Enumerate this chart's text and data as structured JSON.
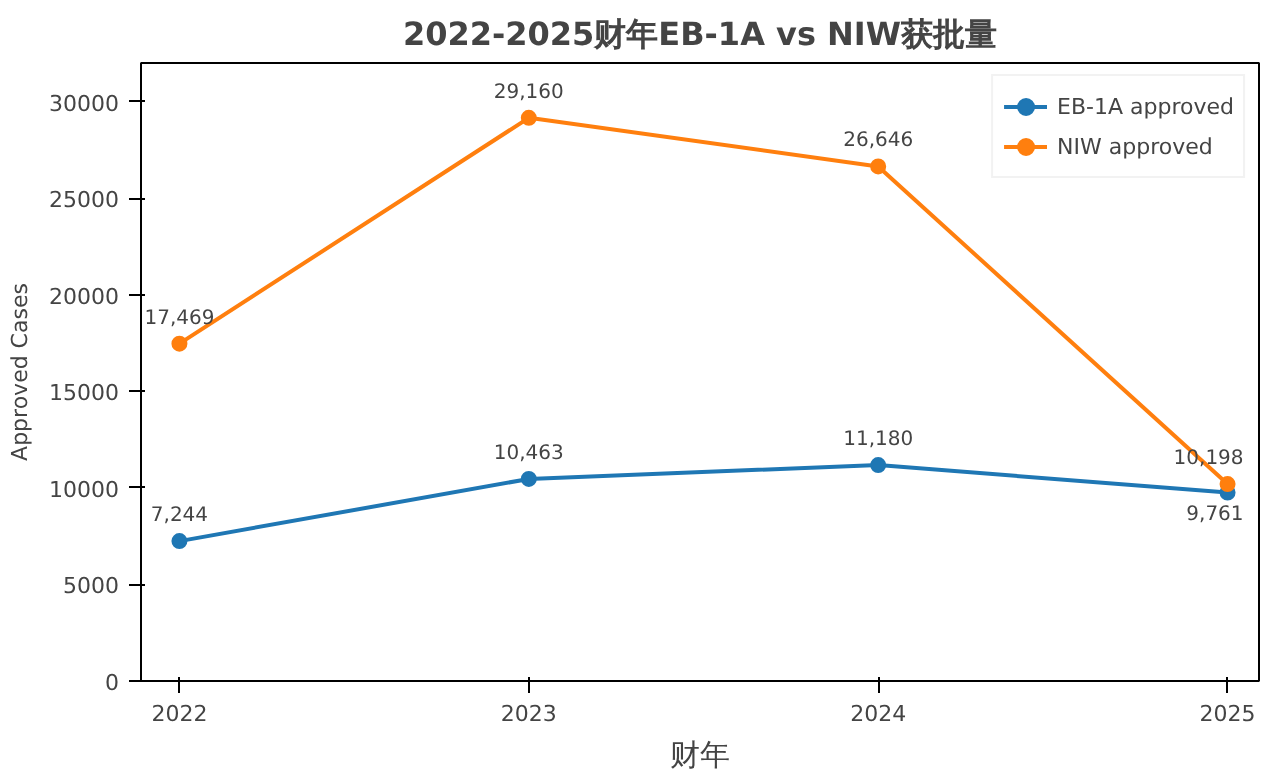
{
  "chart_data": {
    "type": "line",
    "title": "2022-2025财年EB-1A vs NIW获批量",
    "xlabel": "财年",
    "ylabel": "Approved Cases",
    "x": [
      2022,
      2023,
      2024,
      2025
    ],
    "series": [
      {
        "name": "EB-1A approved",
        "color": "#1f77b4",
        "values": [
          7244,
          10463,
          11180,
          9761
        ],
        "value_labels": [
          "7,244",
          "10,463",
          "11,180",
          "9,761"
        ]
      },
      {
        "name": "NIW approved",
        "color": "#ff7f0e",
        "values": [
          17469,
          29160,
          26646,
          10198
        ],
        "value_labels": [
          "17,469",
          "29,160",
          "26,646",
          "10,198"
        ]
      }
    ],
    "xlim": [
      2021.89,
      2025.09
    ],
    "xticks": [
      2022,
      2023,
      2024,
      2025
    ],
    "ylim": [
      0,
      32000
    ],
    "yticks": [
      0,
      5000,
      10000,
      15000,
      20000,
      25000,
      30000
    ],
    "legend": "top right",
    "marker": "circle",
    "line_style": "solid",
    "grid": false
  }
}
